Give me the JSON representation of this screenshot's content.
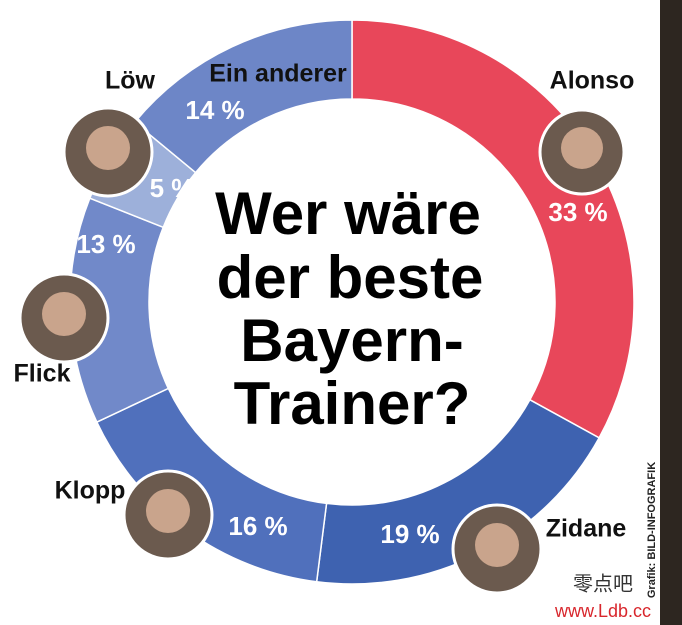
{
  "chart_data": {
    "type": "donut",
    "title": [
      "Wer wäre",
      "der beste",
      "Bayern-",
      "Trainer?"
    ],
    "categories": [
      "Alonso",
      "Zidane",
      "Klopp",
      "Flick",
      "Löw",
      "Ein anderer"
    ],
    "values": [
      33,
      19,
      16,
      13,
      5,
      14
    ],
    "value_labels": [
      "33 %",
      "19 %",
      "16 %",
      "13 %",
      "5 %",
      "14 %"
    ],
    "colors": [
      "#e8475a",
      "#3e62b0",
      "#5070bc",
      "#7189c9",
      "#9db0da",
      "#6d86c7"
    ],
    "source": "Grafik: BILD-INFOGRAFIK",
    "watermark": [
      "零点吧",
      "www.Ldb.cc"
    ]
  }
}
